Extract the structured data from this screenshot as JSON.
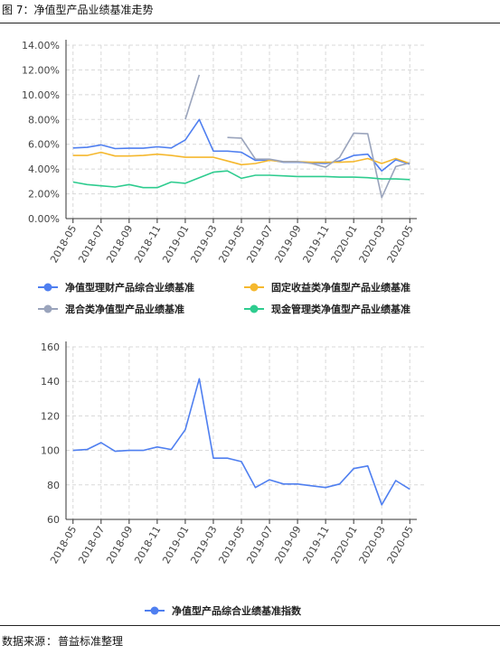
{
  "header": {
    "title": "图 7：净值型产品业绩基准走势"
  },
  "footer": {
    "source_label": "数据来源",
    "source_sep": "：",
    "source_value": "普益标准整理"
  },
  "colors": {
    "composite": "#4f7ff0",
    "fixed_income": "#f5b82e",
    "mixed": "#9aa4bc",
    "cash": "#2ecc8f",
    "index": "#4f7ff0",
    "grid": "#d8d8d8",
    "axis": "#333333"
  },
  "chart_data": [
    {
      "type": "line",
      "title": "",
      "xlabel": "",
      "ylabel": "",
      "ylim": [
        0,
        14
      ],
      "y_format": "percent",
      "grid": true,
      "legend_position": "bottom",
      "categories": [
        "2018-05",
        "2018-06",
        "2018-07",
        "2018-08",
        "2018-09",
        "2018-10",
        "2018-11",
        "2018-12",
        "2019-01",
        "2019-02",
        "2019-03",
        "2019-04",
        "2019-05",
        "2019-06",
        "2019-07",
        "2019-08",
        "2019-09",
        "2019-10",
        "2019-11",
        "2019-12",
        "2020-01",
        "2020-02",
        "2020-03",
        "2020-04",
        "2020-05"
      ],
      "x_tick_labels": [
        "2018-05",
        "2018-07",
        "2018-09",
        "2018-11",
        "2019-01",
        "2019-03",
        "2019-05",
        "2019-07",
        "2019-09",
        "2019-11",
        "2020-01",
        "2020-03",
        "2020-05"
      ],
      "y_tick_labels": [
        "0.00%",
        "2.00%",
        "4.00%",
        "6.00%",
        "8.00%",
        "10.00%",
        "12.00%",
        "14.00%"
      ],
      "series": [
        {
          "name": "净值型理财产品综合业绩基准",
          "color_key": "composite",
          "values": [
            5.7,
            5.75,
            5.95,
            5.65,
            5.68,
            5.68,
            5.8,
            5.7,
            6.35,
            8.0,
            5.45,
            5.45,
            5.35,
            4.7,
            4.75,
            4.55,
            4.55,
            4.5,
            4.45,
            4.65,
            5.1,
            5.2,
            3.85,
            4.75,
            4.4
          ]
        },
        {
          "name": "固定收益类净值型产品业绩基准",
          "color_key": "fixed_income",
          "values": [
            5.1,
            5.1,
            5.35,
            5.05,
            5.05,
            5.1,
            5.2,
            5.1,
            4.95,
            4.95,
            4.95,
            4.65,
            4.35,
            4.45,
            4.7,
            4.6,
            4.6,
            4.55,
            4.55,
            4.55,
            4.6,
            4.85,
            4.45,
            4.85,
            4.45
          ]
        },
        {
          "name": "混合类净值型产品业绩基准",
          "color_key": "mixed",
          "values": [
            null,
            null,
            null,
            null,
            null,
            null,
            null,
            null,
            8.0,
            11.6,
            null,
            6.55,
            6.5,
            4.8,
            4.8,
            4.6,
            4.6,
            4.45,
            4.15,
            4.95,
            6.9,
            6.85,
            1.7,
            4.2,
            4.5
          ]
        },
        {
          "name": "现金管理类净值型产品业绩基准",
          "color_key": "cash",
          "values": [
            2.95,
            2.75,
            2.65,
            2.55,
            2.75,
            2.5,
            2.5,
            2.95,
            2.85,
            3.3,
            3.75,
            3.85,
            3.25,
            3.5,
            3.5,
            3.45,
            3.4,
            3.4,
            3.4,
            3.35,
            3.35,
            3.3,
            3.2,
            3.2,
            3.15
          ]
        }
      ]
    },
    {
      "type": "line",
      "title": "",
      "xlabel": "",
      "ylabel": "",
      "ylim": [
        60,
        160
      ],
      "grid": true,
      "legend_position": "bottom",
      "categories": [
        "2018-05",
        "2018-06",
        "2018-07",
        "2018-08",
        "2018-09",
        "2018-10",
        "2018-11",
        "2018-12",
        "2019-01",
        "2019-02",
        "2019-03",
        "2019-04",
        "2019-05",
        "2019-06",
        "2019-07",
        "2019-08",
        "2019-09",
        "2019-10",
        "2019-11",
        "2019-12",
        "2020-01",
        "2020-02",
        "2020-03",
        "2020-04",
        "2020-05"
      ],
      "x_tick_labels": [
        "2018-05",
        "2018-07",
        "2018-09",
        "2018-11",
        "2019-01",
        "2019-03",
        "2019-05",
        "2019-07",
        "2019-09",
        "2019-11",
        "2020-01",
        "2020-03",
        "2020-05"
      ],
      "y_tick_labels": [
        "60",
        "80",
        "100",
        "120",
        "140",
        "160"
      ],
      "series": [
        {
          "name": "净值型产品综合业绩基准指数",
          "color_key": "index",
          "values": [
            100,
            100.5,
            104.5,
            99.5,
            100,
            100,
            102,
            100.5,
            112,
            141.5,
            95.5,
            95.5,
            93.5,
            78.5,
            83,
            80.5,
            80.5,
            79.5,
            78.5,
            80.5,
            89.5,
            91,
            68.5,
            82.5,
            77.5
          ]
        }
      ]
    }
  ]
}
